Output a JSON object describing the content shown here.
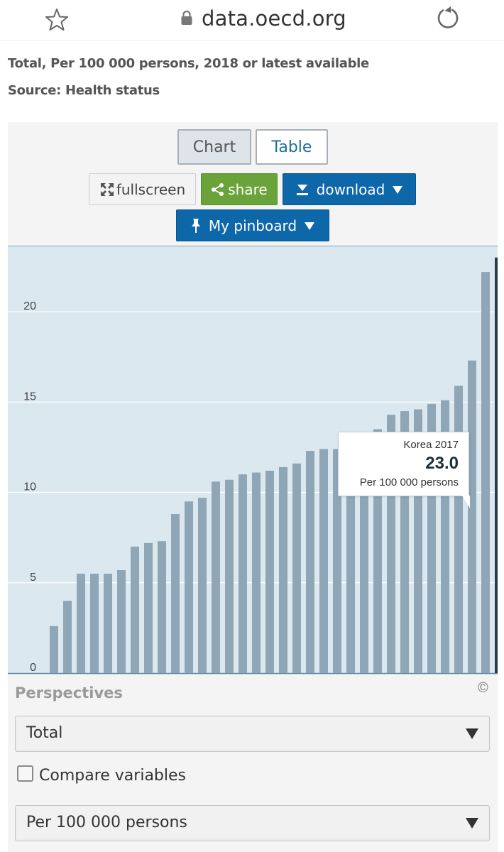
{
  "browser": {
    "url": "data.oecd.org",
    "icons": [
      "star-icon",
      "lock-icon",
      "reload-icon"
    ]
  },
  "header": {
    "subtitle": "Total, Per 100 000 persons, 2018 or latest available",
    "source": "Source: Health status"
  },
  "toolbar": {
    "tab_chart": "Chart",
    "tab_table": "Table",
    "active_tab": "Chart",
    "fullscreen_label": "fullscreen",
    "share_label": "share",
    "download_label": "download",
    "pinboard_label": "My pinboard",
    "colors": {
      "share": "#6aa33a",
      "download": "#0e67a9",
      "pinboard": "#0e67a9"
    }
  },
  "chart_data": {
    "type": "bar",
    "title": "",
    "xlabel": "",
    "ylabel": "",
    "ylim": [
      0,
      23.5
    ],
    "yticks": [
      0,
      5,
      10,
      15,
      20
    ],
    "grid": true,
    "values": [
      2.6,
      4.0,
      5.5,
      5.5,
      5.5,
      5.7,
      7.0,
      7.2,
      7.3,
      8.8,
      9.5,
      9.7,
      10.6,
      10.7,
      11.0,
      11.1,
      11.2,
      11.4,
      11.6,
      12.3,
      12.4,
      12.4,
      12.4,
      12.5,
      13.5,
      14.3,
      14.5,
      14.6,
      14.9,
      15.1,
      15.9,
      17.3,
      22.2,
      23.0
    ],
    "bar_color": "#8ea6b5",
    "highlight_color": "#253d50",
    "highlight_index": 33,
    "background": "#dce8ef",
    "tooltip": {
      "label": "Korea 2017",
      "value": "23.0",
      "unit": "Per 100 000 persons"
    },
    "copyright": "©"
  },
  "perspectives": {
    "title": "Perspectives",
    "perspective_value": "Total",
    "compare_label": "Compare variables",
    "compare_checked": false,
    "unit_value": "Per 100 000 persons"
  }
}
